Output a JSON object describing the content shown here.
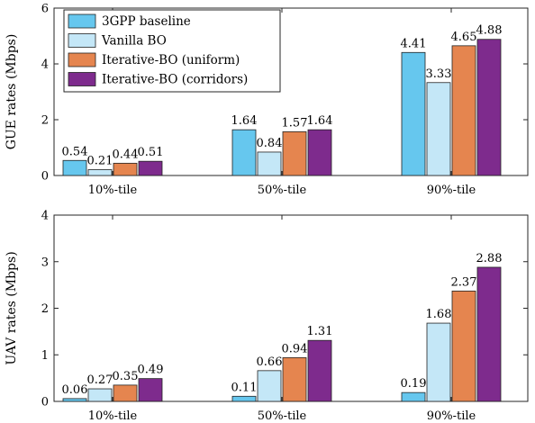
{
  "chart_data": [
    {
      "type": "bar",
      "categories": [
        "10%-tile",
        "50%-tile",
        "90%-tile"
      ],
      "ylabel": "GUE rates (Mbps)",
      "ylim": [
        0,
        6
      ],
      "yticks": [
        "0",
        "2",
        "4",
        "6"
      ],
      "series": [
        {
          "name": "3GPP baseline",
          "values": [
            0.54,
            1.64,
            4.41
          ],
          "labels": [
            "0.54",
            "1.64",
            "4.41"
          ]
        },
        {
          "name": "Vanilla BO",
          "values": [
            0.21,
            0.84,
            3.33
          ],
          "labels": [
            "0.21",
            "0.84",
            "3.33"
          ]
        },
        {
          "name": "Iterative-BO (uniform)",
          "values": [
            0.44,
            1.57,
            4.65
          ],
          "labels": [
            "0.44",
            "1.57",
            "4.65"
          ]
        },
        {
          "name": "Iterative-BO (corridors)",
          "values": [
            0.51,
            1.64,
            4.88
          ],
          "labels": [
            "0.51",
            "1.64",
            "4.88"
          ]
        }
      ],
      "legend_position": "top-left",
      "grid": false
    },
    {
      "type": "bar",
      "categories": [
        "10%-tile",
        "50%-tile",
        "90%-tile"
      ],
      "ylabel": "UAV rates (Mbps)",
      "ylim": [
        0,
        4
      ],
      "yticks": [
        "0",
        "1",
        "2",
        "3",
        "4"
      ],
      "series": [
        {
          "name": "3GPP baseline",
          "values": [
            0.06,
            0.11,
            0.19
          ],
          "labels": [
            "0.06",
            "0.11",
            "0.19"
          ]
        },
        {
          "name": "Vanilla BO",
          "values": [
            0.27,
            0.66,
            1.68
          ],
          "labels": [
            "0.27",
            "0.66",
            "1.68"
          ]
        },
        {
          "name": "Iterative-BO (uniform)",
          "values": [
            0.35,
            0.94,
            2.37
          ],
          "labels": [
            "0.35",
            "0.94",
            "2.37"
          ]
        },
        {
          "name": "Iterative-BO (corridors)",
          "values": [
            0.49,
            1.31,
            2.88
          ],
          "labels": [
            "0.49",
            "1.31",
            "2.88"
          ]
        }
      ],
      "grid": false
    }
  ],
  "colors": [
    "#66c7ee",
    "#c4e7f7",
    "#e5854f",
    "#7e2b8d"
  ],
  "legend": {
    "entries": [
      "3GPP baseline",
      "Vanilla BO",
      "Iterative-BO (uniform)",
      "Iterative-BO (corridors)"
    ]
  }
}
